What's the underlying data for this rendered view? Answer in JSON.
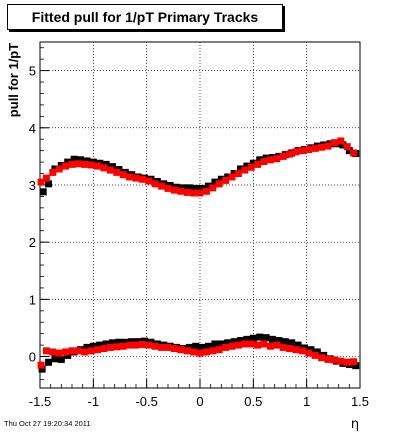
{
  "chart_data": {
    "type": "scatter",
    "title": "Fitted pull for 1/pT  Primary Tracks",
    "xlabel": "η",
    "ylabel": "pull for 1/pT",
    "xlim": [
      -1.5,
      1.5
    ],
    "ylim": [
      -0.55,
      5.5
    ],
    "xticks": [
      "-1.5",
      "-1",
      "-0.5",
      "0",
      "0.5",
      "1",
      "1.5"
    ],
    "yticks": [
      "0",
      "1",
      "2",
      "3",
      "4",
      "5"
    ],
    "grid": true,
    "series": [
      {
        "color": "#000000",
        "x": [
          -1.47,
          -1.42,
          -1.36,
          -1.3,
          -1.24,
          -1.18,
          -1.12,
          -1.06,
          -1.0,
          -0.94,
          -0.88,
          -0.82,
          -0.76,
          -0.7,
          -0.64,
          -0.58,
          -0.52,
          -0.46,
          -0.4,
          -0.34,
          -0.28,
          -0.22,
          -0.16,
          -0.1,
          -0.04,
          0.02,
          0.08,
          0.14,
          0.2,
          0.26,
          0.32,
          0.38,
          0.44,
          0.5,
          0.56,
          0.62,
          0.68,
          0.74,
          0.8,
          0.86,
          0.92,
          0.98,
          1.04,
          1.1,
          1.16,
          1.22,
          1.28,
          1.34,
          1.4,
          1.46
        ],
        "y": [
          2.88,
          3.02,
          3.28,
          3.34,
          3.4,
          3.45,
          3.44,
          3.42,
          3.4,
          3.38,
          3.36,
          3.32,
          3.27,
          3.22,
          3.18,
          3.14,
          3.12,
          3.1,
          3.06,
          3.02,
          2.99,
          2.96,
          2.95,
          2.95,
          2.94,
          2.94,
          2.98,
          3.05,
          3.1,
          3.14,
          3.2,
          3.28,
          3.33,
          3.38,
          3.44,
          3.47,
          3.48,
          3.5,
          3.53,
          3.56,
          3.6,
          3.62,
          3.65,
          3.68,
          3.7,
          3.72,
          3.72,
          3.7,
          3.6,
          3.55
        ]
      },
      {
        "color": "#ff0000",
        "x": [
          -1.49,
          -1.44,
          -1.38,
          -1.32,
          -1.26,
          -1.2,
          -1.14,
          -1.08,
          -1.02,
          -0.96,
          -0.9,
          -0.84,
          -0.78,
          -0.72,
          -0.66,
          -0.6,
          -0.54,
          -0.48,
          -0.42,
          -0.36,
          -0.3,
          -0.24,
          -0.18,
          -0.12,
          -0.06,
          0.0,
          0.06,
          0.12,
          0.18,
          0.24,
          0.3,
          0.36,
          0.42,
          0.48,
          0.54,
          0.6,
          0.66,
          0.72,
          0.78,
          0.84,
          0.9,
          0.96,
          1.02,
          1.08,
          1.14,
          1.2,
          1.26,
          1.32,
          1.38,
          1.44
        ],
        "y": [
          3.05,
          3.12,
          3.22,
          3.28,
          3.33,
          3.36,
          3.37,
          3.36,
          3.35,
          3.33,
          3.3,
          3.26,
          3.22,
          3.18,
          3.14,
          3.12,
          3.1,
          3.07,
          3.02,
          2.98,
          2.94,
          2.91,
          2.89,
          2.87,
          2.86,
          2.86,
          2.89,
          2.95,
          3.02,
          3.08,
          3.14,
          3.2,
          3.26,
          3.31,
          3.36,
          3.41,
          3.44,
          3.46,
          3.5,
          3.54,
          3.58,
          3.6,
          3.62,
          3.64,
          3.66,
          3.68,
          3.74,
          3.77,
          3.67,
          3.56
        ]
      },
      {
        "color": "#000000",
        "x": [
          -1.48,
          -1.42,
          -1.36,
          -1.3,
          -1.24,
          -1.18,
          -1.12,
          -1.06,
          -1.0,
          -0.94,
          -0.88,
          -0.82,
          -0.76,
          -0.7,
          -0.64,
          -0.58,
          -0.52,
          -0.46,
          -0.4,
          -0.34,
          -0.28,
          -0.22,
          -0.16,
          -0.1,
          -0.04,
          0.02,
          0.08,
          0.14,
          0.2,
          0.26,
          0.32,
          0.38,
          0.44,
          0.5,
          0.56,
          0.62,
          0.68,
          0.74,
          0.8,
          0.86,
          0.92,
          0.98,
          1.04,
          1.1,
          1.16,
          1.22,
          1.28,
          1.34,
          1.4,
          1.46
        ],
        "y": [
          -0.22,
          -0.1,
          -0.04,
          -0.05,
          0.02,
          0.08,
          0.12,
          0.16,
          0.18,
          0.2,
          0.22,
          0.24,
          0.25,
          0.25,
          0.26,
          0.26,
          0.27,
          0.25,
          0.22,
          0.2,
          0.18,
          0.16,
          0.14,
          0.16,
          0.18,
          0.16,
          0.18,
          0.22,
          0.22,
          0.24,
          0.26,
          0.28,
          0.3,
          0.32,
          0.34,
          0.33,
          0.3,
          0.28,
          0.26,
          0.24,
          0.2,
          0.15,
          0.12,
          0.08,
          0.02,
          -0.04,
          -0.08,
          -0.12,
          -0.14,
          -0.16
        ]
      },
      {
        "color": "#ff0000",
        "x": [
          -1.49,
          -1.44,
          -1.38,
          -1.32,
          -1.26,
          -1.2,
          -1.14,
          -1.08,
          -1.02,
          -0.96,
          -0.9,
          -0.84,
          -0.78,
          -0.72,
          -0.66,
          -0.6,
          -0.54,
          -0.48,
          -0.42,
          -0.36,
          -0.3,
          -0.24,
          -0.18,
          -0.12,
          -0.06,
          0.0,
          0.06,
          0.12,
          0.18,
          0.24,
          0.3,
          0.36,
          0.42,
          0.48,
          0.54,
          0.6,
          0.66,
          0.72,
          0.78,
          0.84,
          0.9,
          0.96,
          1.02,
          1.08,
          1.14,
          1.2,
          1.26,
          1.32,
          1.38,
          1.44
        ],
        "y": [
          -0.15,
          0.1,
          0.08,
          0.06,
          0.08,
          0.1,
          0.1,
          0.08,
          0.1,
          0.12,
          0.14,
          0.16,
          0.17,
          0.18,
          0.2,
          0.2,
          0.21,
          0.2,
          0.18,
          0.16,
          0.16,
          0.14,
          0.12,
          0.1,
          0.08,
          0.06,
          0.08,
          0.1,
          0.12,
          0.16,
          0.18,
          0.2,
          0.22,
          0.22,
          0.2,
          0.22,
          0.18,
          0.2,
          0.16,
          0.14,
          0.12,
          0.1,
          0.06,
          0.02,
          -0.02,
          -0.05,
          -0.06,
          -0.08,
          -0.1,
          -0.09
        ]
      }
    ]
  },
  "footer": {
    "timestamp": "Thu Oct 27 19:20:34 2011"
  }
}
